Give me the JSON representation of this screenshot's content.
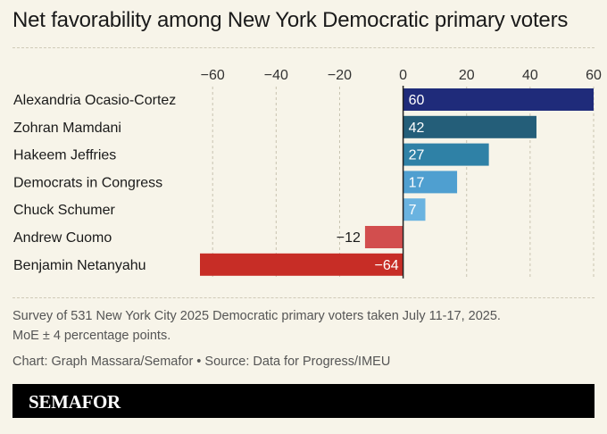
{
  "title": "Net favorability among New York Democratic primary voters",
  "note_line1": "Survey of 531 New York City 2025 Democratic primary voters taken July 11-17, 2025.",
  "note_line2": "MoE ± 4 percentage points.",
  "credit": "Chart: Graph Massara/Semafor • Source: Data for Progress/IMEU",
  "brand": "SEMAFOR",
  "colors": {
    "background": "#f7f4e9",
    "grid": "#c8c3b0",
    "axis": "#222222"
  },
  "chart_data": {
    "type": "bar",
    "orientation": "horizontal",
    "categories": [
      "Alexandria Ocasio-Cortez",
      "Zohran Mamdani",
      "Hakeem Jeffries",
      "Democrats in Congress",
      "Chuck Schumer",
      "Andrew Cuomo",
      "Benjamin Netanyahu"
    ],
    "values": [
      60,
      42,
      27,
      17,
      7,
      -12,
      -64
    ],
    "value_labels": [
      "60",
      "42",
      "27",
      "17",
      "7",
      "−12",
      "−64"
    ],
    "bar_colors": [
      "#1f2b7a",
      "#245e79",
      "#2f81a6",
      "#4f9fd0",
      "#6ab3e0",
      "#d24e4e",
      "#c72d26"
    ],
    "xlim": [
      -64,
      60
    ],
    "xticks": [
      -60,
      -40,
      -20,
      0,
      20,
      40,
      60
    ],
    "xtick_labels": [
      "−60",
      "−40",
      "−20",
      "0",
      "20",
      "40",
      "60"
    ],
    "grid": true,
    "axis_position": "top"
  }
}
